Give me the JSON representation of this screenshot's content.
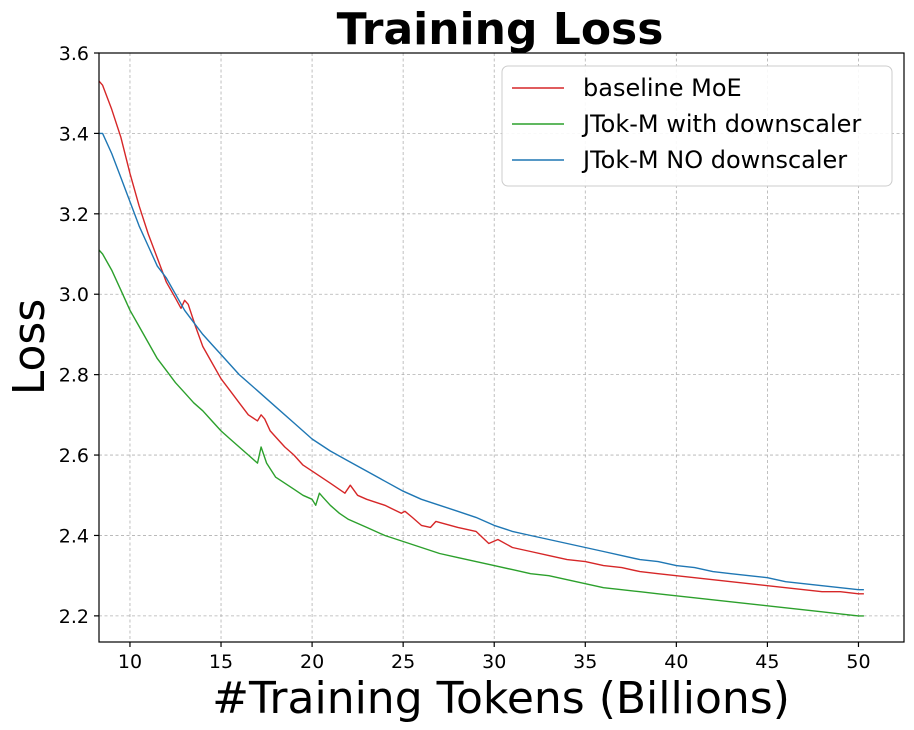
{
  "chart_data": {
    "type": "line",
    "title": "Training Loss",
    "xlabel": "#Training Tokens (Billions)",
    "ylabel": "Loss",
    "xlim": [
      8.3,
      52.5
    ],
    "ylim": [
      2.135,
      3.6
    ],
    "xticks": [
      10,
      15,
      20,
      25,
      30,
      35,
      40,
      45,
      50
    ],
    "yticks": [
      2.2,
      2.4,
      2.6,
      2.8,
      3.0,
      3.2,
      3.4,
      3.6
    ],
    "xtick_labels": [
      "10",
      "15",
      "20",
      "25",
      "30",
      "35",
      "40",
      "45",
      "50"
    ],
    "ytick_labels": [
      "2.2",
      "2.4",
      "2.6",
      "2.8",
      "3.0",
      "3.2",
      "3.4",
      "3.6"
    ],
    "grid": true,
    "legend_position": "top-right",
    "series": [
      {
        "name": "baseline MoE",
        "color": "#d62728",
        "x": [
          8.3,
          8.5,
          9,
          9.5,
          10,
          10.5,
          11,
          11.5,
          12,
          12.5,
          12.8,
          13.0,
          13.2,
          13.6,
          14,
          14.5,
          15,
          15.5,
          16,
          16.5,
          17,
          17.2,
          17.4,
          17.7,
          18,
          18.5,
          19,
          19.5,
          20,
          21,
          21.8,
          22.1,
          22.5,
          23,
          24,
          24.9,
          25.1,
          25.5,
          26,
          26.5,
          26.8,
          27.2,
          28,
          29,
          29.7,
          30.2,
          31,
          32,
          33,
          34,
          35,
          36,
          37,
          38,
          39,
          40,
          41,
          42,
          43,
          44,
          45,
          46,
          47,
          48,
          49,
          50,
          50.3
        ],
        "y": [
          3.53,
          3.52,
          3.46,
          3.39,
          3.3,
          3.22,
          3.15,
          3.09,
          3.03,
          2.99,
          2.965,
          2.985,
          2.975,
          2.92,
          2.87,
          2.83,
          2.79,
          2.76,
          2.73,
          2.7,
          2.685,
          2.7,
          2.69,
          2.66,
          2.645,
          2.62,
          2.6,
          2.575,
          2.56,
          2.53,
          2.505,
          2.525,
          2.5,
          2.49,
          2.475,
          2.455,
          2.46,
          2.445,
          2.425,
          2.42,
          2.435,
          2.43,
          2.42,
          2.41,
          2.38,
          2.39,
          2.37,
          2.36,
          2.35,
          2.34,
          2.335,
          2.325,
          2.32,
          2.31,
          2.305,
          2.3,
          2.295,
          2.29,
          2.285,
          2.28,
          2.275,
          2.27,
          2.265,
          2.26,
          2.26,
          2.255,
          2.255
        ]
      },
      {
        "name": "JTok-M with downscaler",
        "color": "#2ca02c",
        "x": [
          8.3,
          8.5,
          9,
          9.5,
          10,
          10.5,
          11,
          11.5,
          12,
          12.5,
          13,
          13.5,
          14,
          14.5,
          15,
          15.5,
          16,
          16.5,
          17.0,
          17.2,
          17.5,
          18,
          18.5,
          19,
          19.5,
          20,
          20.2,
          20.4,
          20.6,
          21,
          21.5,
          22,
          22.5,
          23,
          24,
          25,
          26,
          27,
          28,
          29,
          30,
          31,
          32,
          33,
          34,
          35,
          36,
          37,
          38,
          39,
          40,
          41,
          42,
          43,
          44,
          45,
          46,
          47,
          48,
          49,
          50,
          50.3
        ],
        "y": [
          3.11,
          3.1,
          3.06,
          3.01,
          2.96,
          2.92,
          2.88,
          2.84,
          2.81,
          2.78,
          2.755,
          2.73,
          2.71,
          2.685,
          2.66,
          2.64,
          2.62,
          2.6,
          2.58,
          2.62,
          2.58,
          2.545,
          2.53,
          2.515,
          2.5,
          2.49,
          2.475,
          2.505,
          2.495,
          2.475,
          2.455,
          2.44,
          2.43,
          2.42,
          2.4,
          2.385,
          2.37,
          2.355,
          2.345,
          2.335,
          2.325,
          2.315,
          2.305,
          2.3,
          2.29,
          2.28,
          2.27,
          2.265,
          2.26,
          2.255,
          2.25,
          2.245,
          2.24,
          2.235,
          2.23,
          2.225,
          2.22,
          2.215,
          2.21,
          2.205,
          2.2,
          2.2
        ]
      },
      {
        "name": "JTok-M NO downscaler",
        "color": "#1f77b4",
        "x": [
          8.3,
          8.5,
          9,
          9.5,
          10,
          10.5,
          11,
          11.5,
          12,
          12.5,
          13,
          13.5,
          14,
          14.5,
          15,
          16,
          17,
          18,
          19,
          20,
          21,
          22,
          23,
          24,
          25,
          26,
          27,
          28,
          29,
          30,
          31,
          32,
          33,
          34,
          35,
          36,
          37,
          38,
          39,
          40,
          41,
          42,
          43,
          44,
          45,
          46,
          47,
          48,
          49,
          50,
          50.3
        ],
        "y": [
          3.4,
          3.4,
          3.35,
          3.29,
          3.23,
          3.17,
          3.12,
          3.07,
          3.04,
          3.0,
          2.96,
          2.93,
          2.9,
          2.875,
          2.85,
          2.8,
          2.76,
          2.72,
          2.68,
          2.64,
          2.61,
          2.585,
          2.56,
          2.535,
          2.51,
          2.49,
          2.475,
          2.46,
          2.445,
          2.425,
          2.41,
          2.4,
          2.39,
          2.38,
          2.37,
          2.36,
          2.35,
          2.34,
          2.335,
          2.325,
          2.32,
          2.31,
          2.305,
          2.3,
          2.295,
          2.285,
          2.28,
          2.275,
          2.27,
          2.265,
          2.265
        ]
      }
    ]
  }
}
